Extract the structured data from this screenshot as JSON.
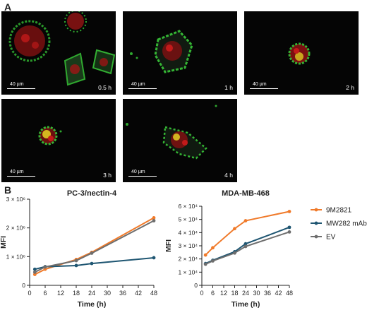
{
  "panelA": {
    "letter": "A",
    "images": [
      {
        "scale": "40 µm",
        "time": "0.5 h"
      },
      {
        "scale": "40 µm",
        "time": "1 h"
      },
      {
        "scale": "40 µm",
        "time": "2 h"
      },
      {
        "scale": "40 µm",
        "time": "3 h"
      },
      {
        "scale": "40 µm",
        "time": "4 h"
      }
    ]
  },
  "panelB": {
    "letter": "B"
  },
  "colors": {
    "9M2821": "#f07a2a",
    "MW282 mAb": "#1f5672",
    "EV": "#6e6e6e"
  },
  "chart_data": [
    {
      "type": "line",
      "title": "PC-3/nectin-4",
      "xlabel": "Time (h)",
      "ylabel": "MFI",
      "x": [
        2,
        6,
        18,
        24,
        48
      ],
      "xticks": [
        "0",
        "6",
        "12",
        "18",
        "24",
        "30",
        "36",
        "42",
        "48"
      ],
      "yticks": [
        "0",
        "1 × 10⁶",
        "2 × 10⁶",
        "3 × 10⁶"
      ],
      "xlim": [
        0,
        48
      ],
      "ylim": [
        0,
        3000000
      ],
      "series": [
        {
          "name": "9M2821",
          "values": [
            380000,
            560000,
            900000,
            1150000,
            2350000
          ]
        },
        {
          "name": "MW282 mAb",
          "values": [
            560000,
            650000,
            690000,
            760000,
            960000
          ]
        },
        {
          "name": "EV",
          "values": [
            460000,
            640000,
            860000,
            1120000,
            2250000
          ]
        }
      ]
    },
    {
      "type": "line",
      "title": "MDA-MB-468",
      "xlabel": "Time (h)",
      "ylabel": "MFI",
      "x": [
        2,
        6,
        18,
        24,
        48
      ],
      "xticks": [
        "0",
        "6",
        "12",
        "18",
        "24",
        "30",
        "36",
        "42",
        "48"
      ],
      "yticks": [
        "0",
        "1 × 10⁴",
        "2 × 10⁴",
        "3 × 10⁴",
        "4 × 10⁴",
        "5 × 10⁴",
        "6 × 10⁴"
      ],
      "xlim": [
        0,
        48
      ],
      "ylim": [
        0,
        60000
      ],
      "series": [
        {
          "name": "9M2821",
          "values": [
            23000,
            28500,
            43000,
            49000,
            56000
          ]
        },
        {
          "name": "MW282 mAb",
          "values": [
            16500,
            19000,
            25500,
            31500,
            44000
          ]
        },
        {
          "name": "EV",
          "values": [
            16000,
            18500,
            24500,
            29500,
            40500
          ]
        }
      ]
    }
  ],
  "legend": [
    "9M2821",
    "MW282 mAb",
    "EV"
  ]
}
